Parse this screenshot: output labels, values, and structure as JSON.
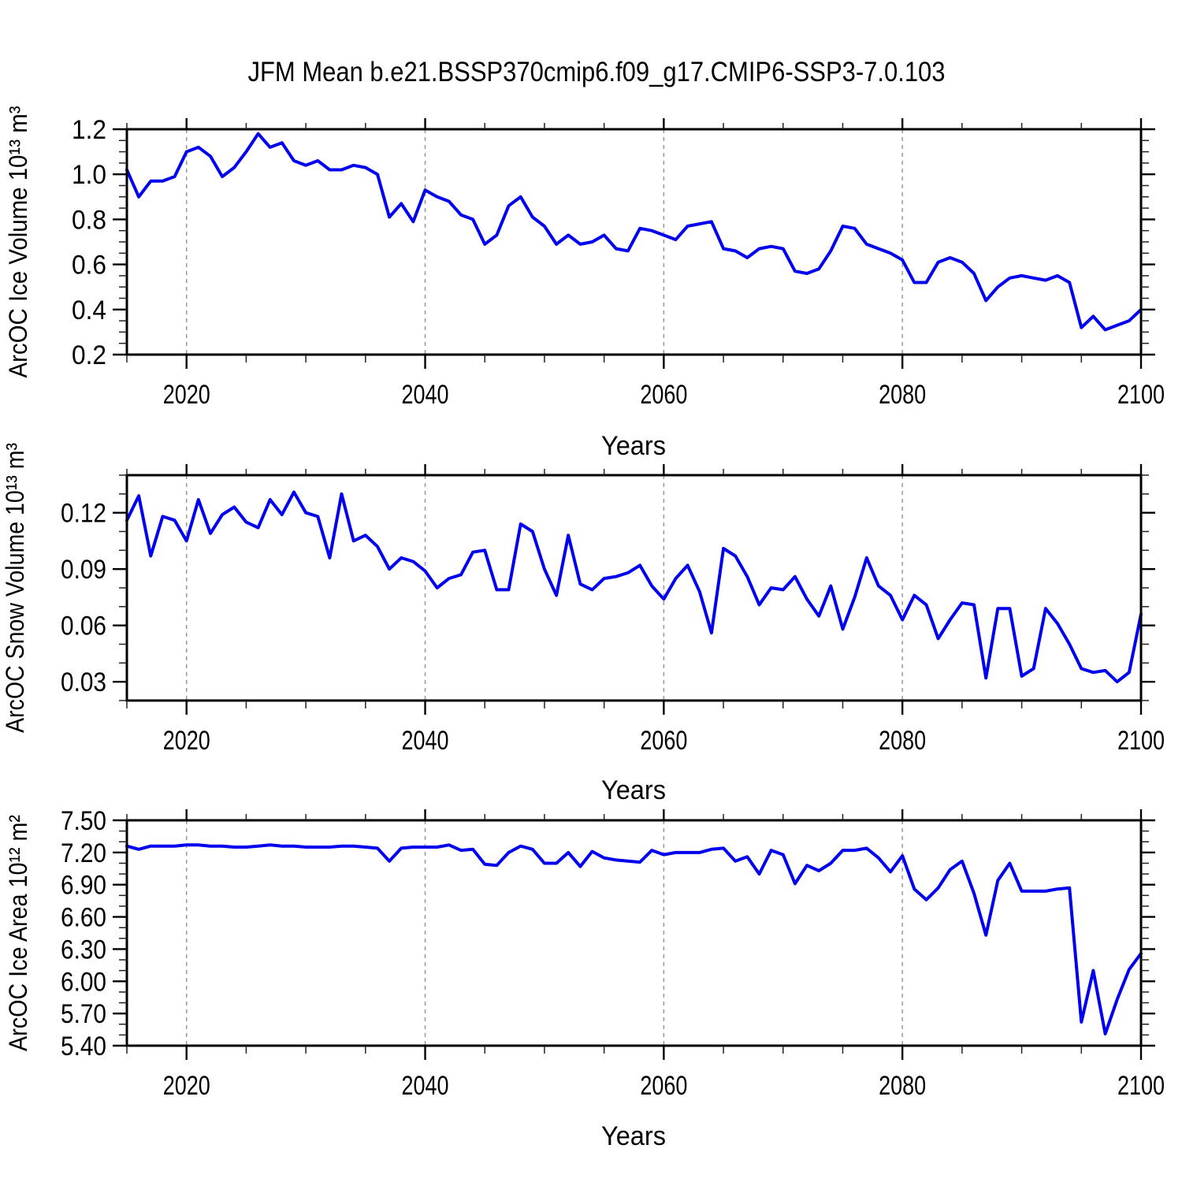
{
  "title": "JFM Mean b.e21.BSSP370cmip6.f09_g17.CMIP6-SSP3-7.0.103",
  "line_color": "#0000ee",
  "grid_color": "#999999",
  "frame_color": "#000000",
  "x_axis": {
    "label": "Years",
    "lim": [
      2015,
      2100
    ],
    "minor_step": 5,
    "gridline_years": [
      2020,
      2040,
      2060,
      2080
    ],
    "ticks": [
      {
        "value": 2020,
        "label": "2020"
      },
      {
        "value": 2040,
        "label": "2040"
      },
      {
        "value": 2060,
        "label": "2060"
      },
      {
        "value": 2080,
        "label": "2080"
      },
      {
        "value": 2100,
        "label": "2100"
      }
    ]
  },
  "years": [
    2015,
    2016,
    2017,
    2018,
    2019,
    2020,
    2021,
    2022,
    2023,
    2024,
    2025,
    2026,
    2027,
    2028,
    2029,
    2030,
    2031,
    2032,
    2033,
    2034,
    2035,
    2036,
    2037,
    2038,
    2039,
    2040,
    2041,
    2042,
    2043,
    2044,
    2045,
    2046,
    2047,
    2048,
    2049,
    2050,
    2051,
    2052,
    2053,
    2054,
    2055,
    2056,
    2057,
    2058,
    2059,
    2060,
    2061,
    2062,
    2063,
    2064,
    2065,
    2066,
    2067,
    2068,
    2069,
    2070,
    2071,
    2072,
    2073,
    2074,
    2075,
    2076,
    2077,
    2078,
    2079,
    2080,
    2081,
    2082,
    2083,
    2084,
    2085,
    2086,
    2087,
    2088,
    2089,
    2090,
    2091,
    2092,
    2093,
    2094,
    2095,
    2096,
    2097,
    2098,
    2099,
    2100
  ],
  "chart_data": [
    {
      "type": "line",
      "name": "ice-volume",
      "ylabel": "ArcOC Ice Volume 10¹³ m³",
      "ylim": [
        0.2,
        1.2
      ],
      "ytick_minor_step": 0.05,
      "yticks": [
        {
          "value": 1.2,
          "label": "1.2"
        },
        {
          "value": 1.0,
          "label": "1.0"
        },
        {
          "value": 0.8,
          "label": "0.8"
        },
        {
          "value": 0.6,
          "label": "0.6"
        },
        {
          "value": 0.4,
          "label": "0.4"
        },
        {
          "value": 0.2,
          "label": "0.2"
        }
      ],
      "values": [
        1.02,
        0.9,
        0.97,
        0.97,
        0.99,
        1.1,
        1.12,
        1.08,
        0.99,
        1.03,
        1.1,
        1.18,
        1.12,
        1.14,
        1.06,
        1.04,
        1.06,
        1.02,
        1.02,
        1.04,
        1.03,
        1.0,
        0.81,
        0.87,
        0.79,
        0.93,
        0.9,
        0.88,
        0.82,
        0.8,
        0.69,
        0.73,
        0.86,
        0.9,
        0.81,
        0.77,
        0.69,
        0.73,
        0.69,
        0.7,
        0.73,
        0.67,
        0.66,
        0.76,
        0.75,
        0.73,
        0.71,
        0.77,
        0.78,
        0.79,
        0.67,
        0.66,
        0.63,
        0.67,
        0.68,
        0.67,
        0.57,
        0.56,
        0.58,
        0.66,
        0.77,
        0.76,
        0.69,
        0.67,
        0.65,
        0.62,
        0.52,
        0.52,
        0.61,
        0.63,
        0.61,
        0.56,
        0.44,
        0.5,
        0.54,
        0.55,
        0.54,
        0.53,
        0.55,
        0.52,
        0.32,
        0.37,
        0.31,
        0.33,
        0.35,
        0.4
      ]
    },
    {
      "type": "line",
      "name": "snow-volume",
      "ylabel": "ArcOC Snow Volume 10¹³ m³",
      "ylim": [
        0.02,
        0.14
      ],
      "ytick_minor_step": 0.01,
      "yticks": [
        {
          "value": 0.12,
          "label": "0.12"
        },
        {
          "value": 0.09,
          "label": "0.09"
        },
        {
          "value": 0.06,
          "label": "0.06"
        },
        {
          "value": 0.03,
          "label": "0.03"
        }
      ],
      "values": [
        0.116,
        0.129,
        0.097,
        0.118,
        0.116,
        0.105,
        0.127,
        0.109,
        0.119,
        0.123,
        0.115,
        0.112,
        0.127,
        0.119,
        0.131,
        0.12,
        0.118,
        0.096,
        0.13,
        0.105,
        0.108,
        0.102,
        0.09,
        0.096,
        0.094,
        0.089,
        0.08,
        0.085,
        0.087,
        0.099,
        0.1,
        0.079,
        0.079,
        0.114,
        0.11,
        0.09,
        0.076,
        0.108,
        0.082,
        0.079,
        0.085,
        0.086,
        0.088,
        0.092,
        0.081,
        0.074,
        0.085,
        0.092,
        0.078,
        0.056,
        0.101,
        0.097,
        0.086,
        0.071,
        0.08,
        0.079,
        0.086,
        0.074,
        0.065,
        0.081,
        0.058,
        0.075,
        0.096,
        0.081,
        0.076,
        0.063,
        0.076,
        0.071,
        0.053,
        0.063,
        0.072,
        0.071,
        0.032,
        0.069,
        0.069,
        0.033,
        0.037,
        0.069,
        0.061,
        0.05,
        0.037,
        0.035,
        0.036,
        0.03,
        0.035,
        0.066
      ]
    },
    {
      "type": "line",
      "name": "ice-area",
      "ylabel": "ArcOC Ice Area 10¹² m²",
      "ylim": [
        5.4,
        7.5
      ],
      "ytick_minor_step": 0.1,
      "yticks": [
        {
          "value": 7.5,
          "label": "7.50"
        },
        {
          "value": 7.2,
          "label": "7.20"
        },
        {
          "value": 6.9,
          "label": "6.90"
        },
        {
          "value": 6.6,
          "label": "6.60"
        },
        {
          "value": 6.3,
          "label": "6.30"
        },
        {
          "value": 6.0,
          "label": "6.00"
        },
        {
          "value": 5.7,
          "label": "5.70"
        },
        {
          "value": 5.4,
          "label": "5.40"
        }
      ],
      "values": [
        7.26,
        7.23,
        7.26,
        7.26,
        7.26,
        7.27,
        7.27,
        7.26,
        7.26,
        7.25,
        7.25,
        7.26,
        7.27,
        7.26,
        7.26,
        7.25,
        7.25,
        7.25,
        7.26,
        7.26,
        7.25,
        7.24,
        7.12,
        7.24,
        7.25,
        7.25,
        7.25,
        7.27,
        7.22,
        7.23,
        7.09,
        7.08,
        7.2,
        7.26,
        7.23,
        7.1,
        7.1,
        7.2,
        7.07,
        7.21,
        7.15,
        7.13,
        7.12,
        7.11,
        7.22,
        7.18,
        7.2,
        7.2,
        7.2,
        7.23,
        7.24,
        7.12,
        7.16,
        7.0,
        7.22,
        7.18,
        6.91,
        7.08,
        7.03,
        7.1,
        7.22,
        7.22,
        7.24,
        7.15,
        7.02,
        7.17,
        6.86,
        6.76,
        6.87,
        7.04,
        7.12,
        6.82,
        6.43,
        6.94,
        7.1,
        6.84,
        6.84,
        6.84,
        6.86,
        6.87,
        5.62,
        6.1,
        5.51,
        5.83,
        6.11,
        6.26
      ]
    }
  ]
}
